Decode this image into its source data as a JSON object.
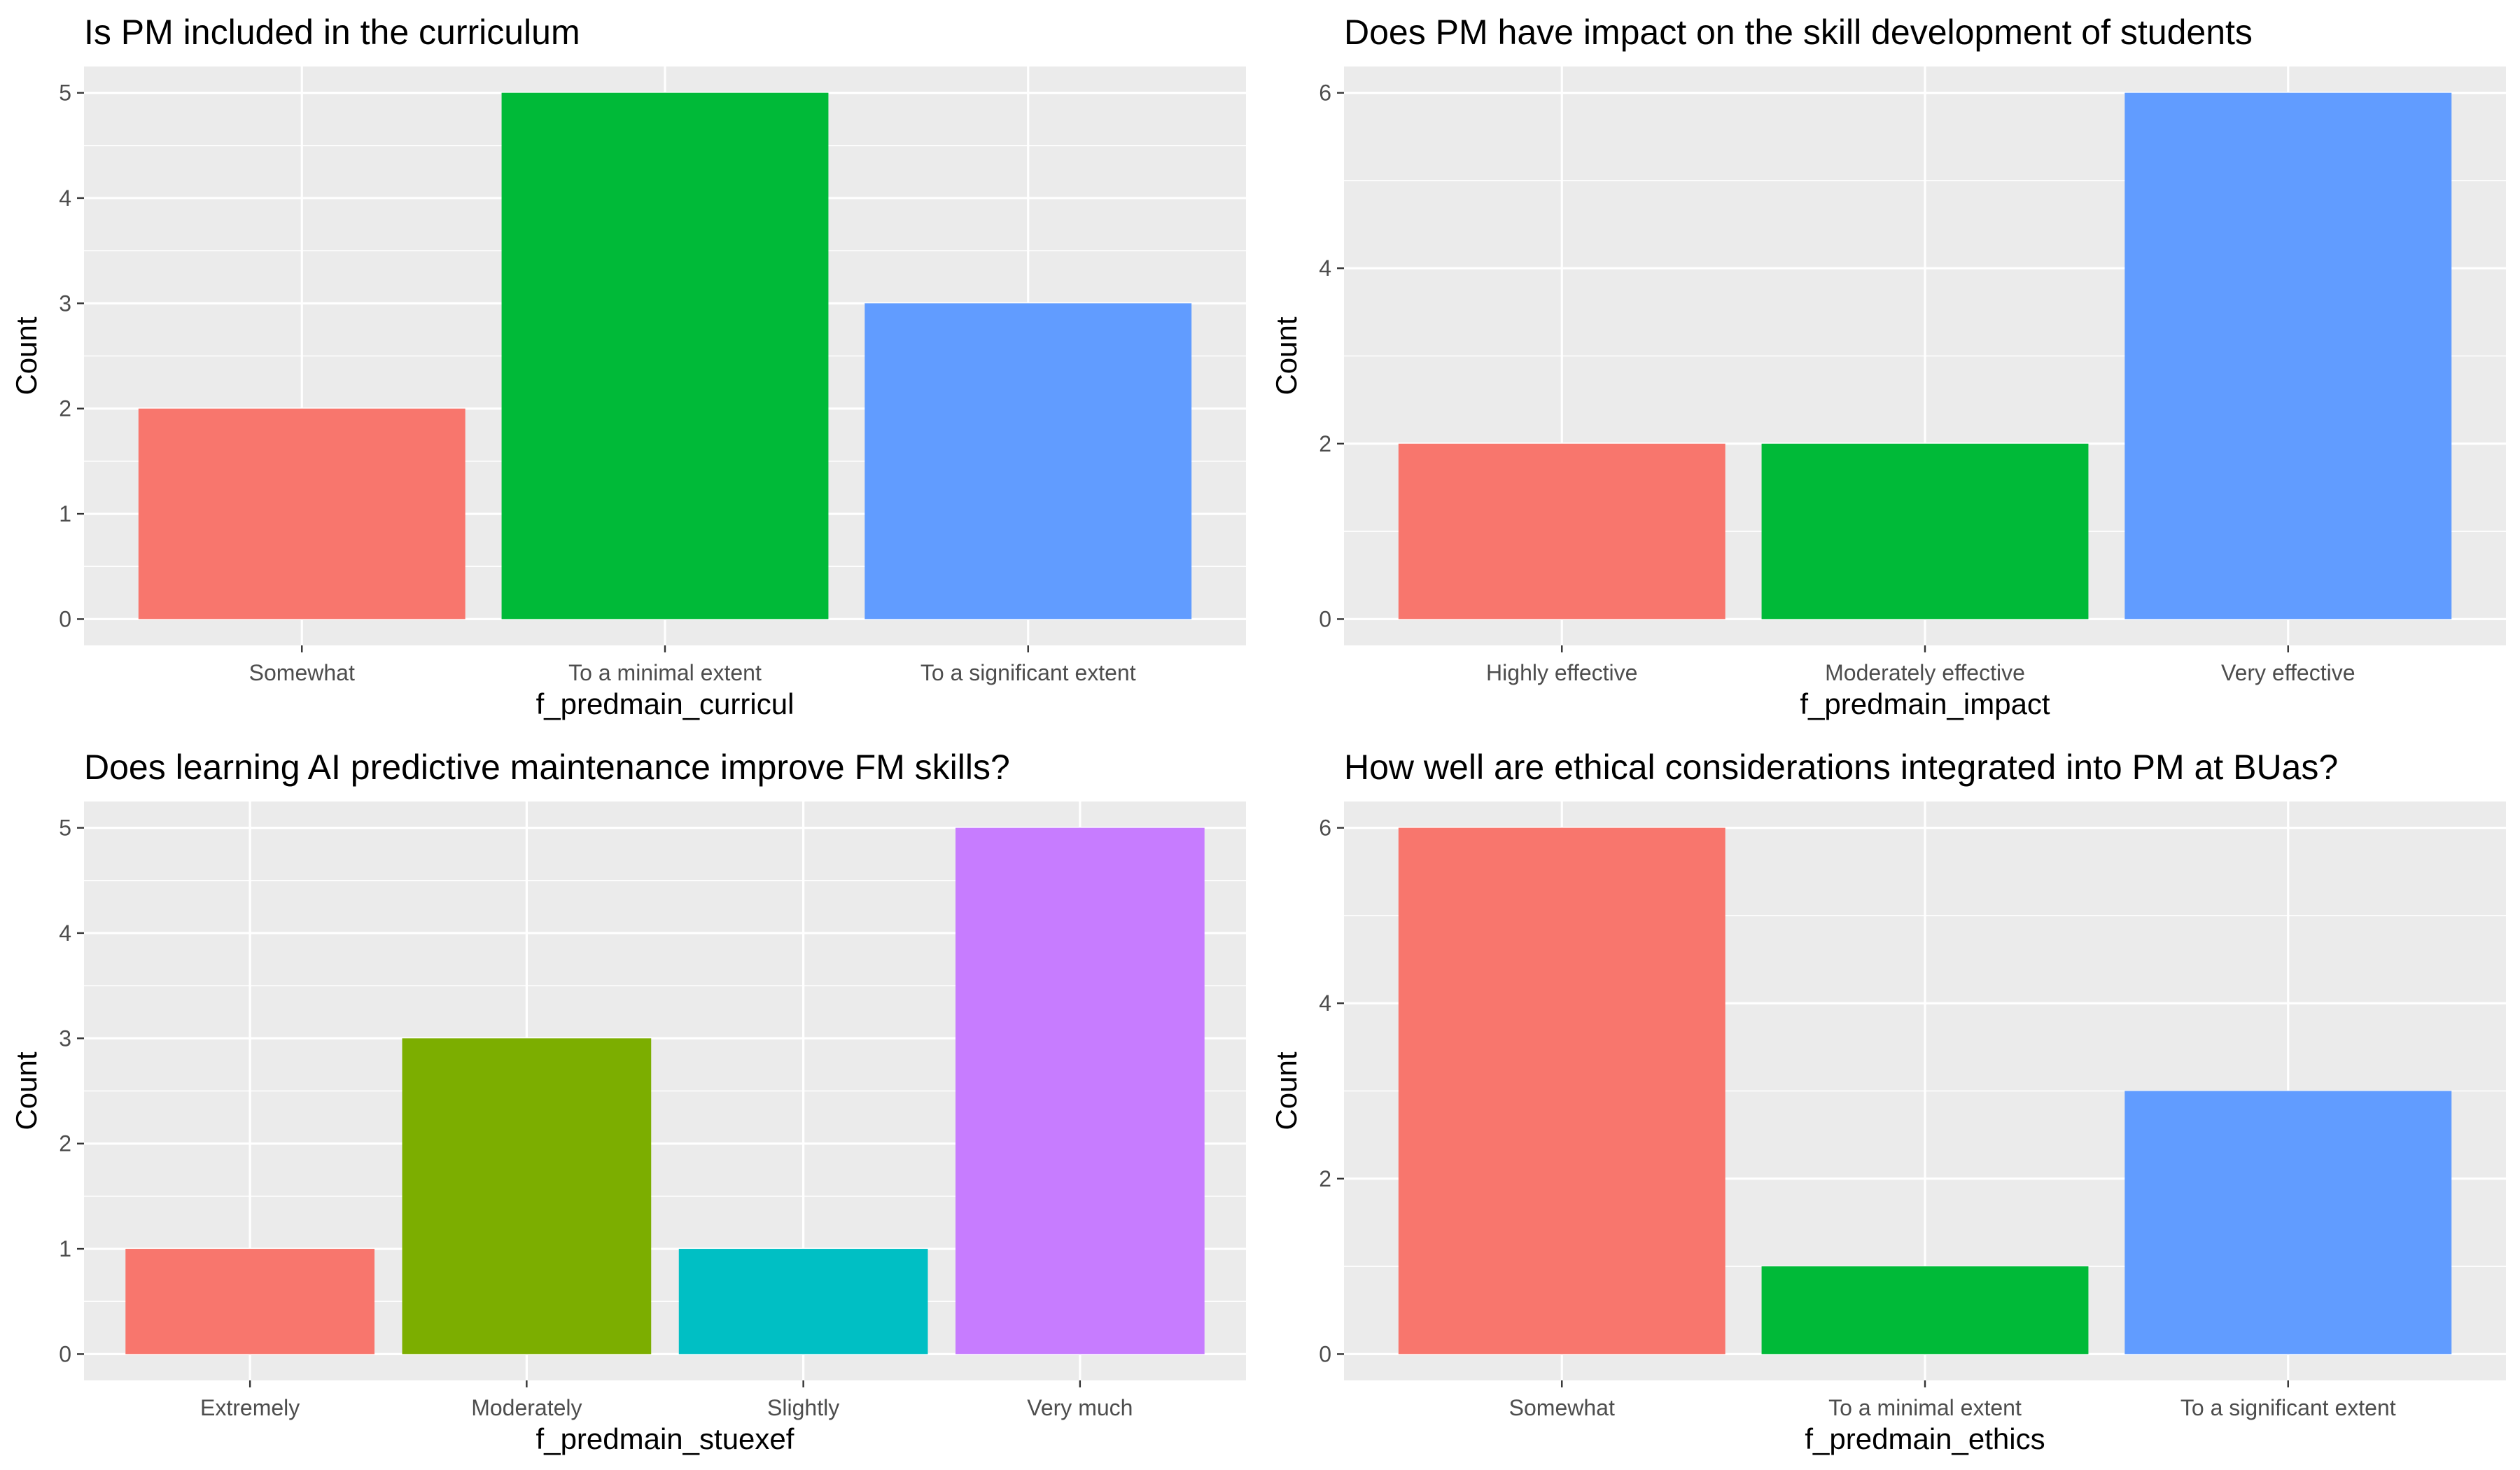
{
  "chart_data": [
    {
      "type": "bar",
      "title": "Is PM included in the curriculum",
      "xlabel": "f_predmain_curricul",
      "ylabel": "Count",
      "categories": [
        "Somewhat",
        "To a minimal extent",
        "To a significant extent"
      ],
      "values": [
        2,
        5,
        3
      ],
      "colors": [
        "#F8766D",
        "#00BA38",
        "#619CFF"
      ],
      "ylim": [
        0,
        5
      ],
      "yticks": [
        0,
        1,
        2,
        3,
        4,
        5
      ],
      "grid": true,
      "legend": "none"
    },
    {
      "type": "bar",
      "title": "Does PM have impact on the skill development of students",
      "xlabel": "f_predmain_impact",
      "ylabel": "Count",
      "categories": [
        "Highly effective",
        "Moderately effective",
        "Very effective"
      ],
      "values": [
        2,
        2,
        6
      ],
      "colors": [
        "#F8766D",
        "#00BA38",
        "#619CFF"
      ],
      "ylim": [
        0,
        6
      ],
      "yticks": [
        0,
        2,
        4,
        6
      ],
      "grid": true,
      "legend": "none"
    },
    {
      "type": "bar",
      "title": "Does learning AI predictive maintenance improve FM skills?",
      "xlabel": "f_predmain_stuexef",
      "ylabel": "Count",
      "categories": [
        "Extremely",
        "Moderately",
        "Slightly",
        "Very much"
      ],
      "values": [
        1,
        3,
        1,
        5
      ],
      "colors": [
        "#F8766D",
        "#7CAE00",
        "#00BFC4",
        "#C77CFF"
      ],
      "ylim": [
        0,
        5
      ],
      "yticks": [
        0,
        1,
        2,
        3,
        4,
        5
      ],
      "grid": true,
      "legend": "none"
    },
    {
      "type": "bar",
      "title": "How well are ethical considerations integrated into PM at BUas?",
      "xlabel": "f_predmain_ethics",
      "ylabel": "Count",
      "categories": [
        "Somewhat",
        "To a minimal extent",
        "To a significant extent"
      ],
      "values": [
        6,
        1,
        3
      ],
      "colors": [
        "#F8766D",
        "#00BA38",
        "#619CFF"
      ],
      "ylim": [
        0,
        6
      ],
      "yticks": [
        0,
        2,
        4,
        6
      ],
      "grid": true,
      "legend": "none"
    }
  ]
}
